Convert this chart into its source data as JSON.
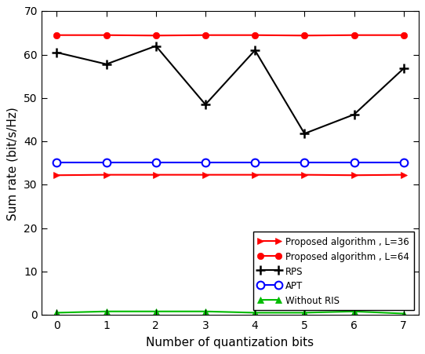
{
  "x": [
    0,
    1,
    2,
    3,
    4,
    5,
    6,
    7
  ],
  "proposed_L36": [
    32.2,
    32.3,
    32.3,
    32.3,
    32.3,
    32.3,
    32.2,
    32.3
  ],
  "proposed_L64": [
    64.5,
    64.5,
    64.4,
    64.5,
    64.5,
    64.4,
    64.5,
    64.5
  ],
  "rps": [
    60.5,
    57.8,
    62.0,
    48.5,
    61.0,
    41.8,
    46.2,
    56.8
  ],
  "apt": [
    35.2,
    35.2,
    35.2,
    35.2,
    35.2,
    35.2,
    35.2,
    35.2
  ],
  "without_ris": [
    0.5,
    0.8,
    0.8,
    0.8,
    0.5,
    0.5,
    0.8,
    0.3
  ],
  "xlabel": "Number of quantization bits",
  "ylabel": "Sum rate (bit/s/Hz)",
  "ylim": [
    0,
    70
  ],
  "xlim": [
    -0.3,
    7.3
  ],
  "yticks": [
    0,
    10,
    20,
    30,
    40,
    50,
    60,
    70
  ],
  "xticks": [
    0,
    1,
    2,
    3,
    4,
    5,
    6,
    7
  ],
  "legend_labels": [
    "Proposed algorithm , L=36",
    "Proposed algorithm , L=64",
    "RPS",
    "APT",
    "Without RIS"
  ],
  "colors": {
    "proposed_L36": "#ff0000",
    "proposed_L64": "#ff0000",
    "rps": "#000000",
    "apt": "#0000ff",
    "without_ris": "#00bb00"
  },
  "figsize": [
    5.42,
    4.52
  ],
  "dpi": 100
}
